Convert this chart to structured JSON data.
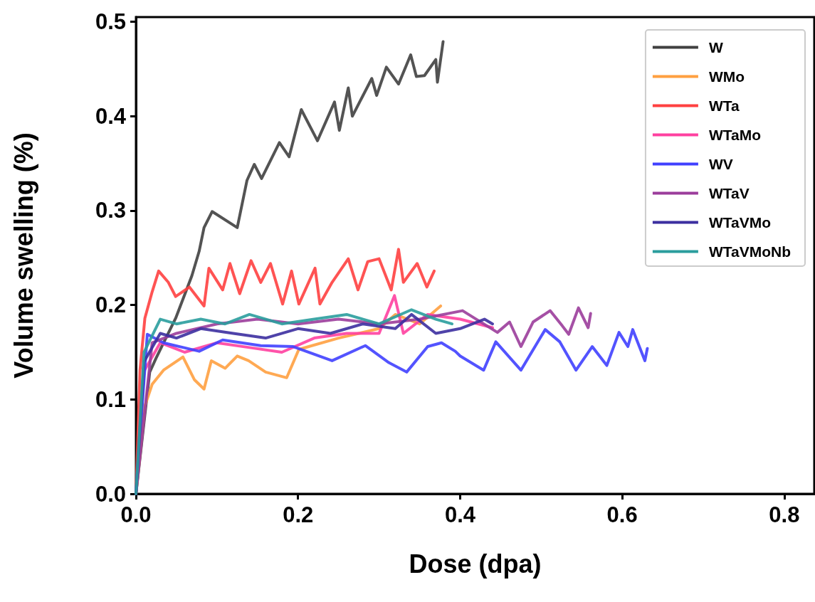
{
  "chart_data": {
    "type": "line",
    "xlabel": "Dose (dpa)",
    "ylabel": "Volume swelling (%)",
    "xlim": [
      0,
      0.837
    ],
    "ylim": [
      0,
      0.505
    ],
    "xticks": [
      {
        "value": 0,
        "label": "0.0"
      },
      {
        "value": 0.2,
        "label": "0.2"
      },
      {
        "value": 0.4,
        "label": "0.4"
      },
      {
        "value": 0.6,
        "label": "0.6"
      },
      {
        "value": 0.8,
        "label": "0.8"
      }
    ],
    "yticks": [
      {
        "value": 0,
        "label": "0.0"
      },
      {
        "value": 0.1,
        "label": "0.1"
      },
      {
        "value": 0.2,
        "label": "0.2"
      },
      {
        "value": 0.3,
        "label": "0.3"
      },
      {
        "value": 0.4,
        "label": "0.4"
      },
      {
        "value": 0.5,
        "label": "0.5"
      }
    ],
    "grid": false,
    "legend": "top right",
    "marker": "none",
    "line_style": "solid",
    "series": [
      {
        "name": "W",
        "color": "#404040",
        "x": [
          0,
          0.017,
          0.025,
          0.049,
          0.069,
          0.078,
          0.084,
          0.094,
          0.125,
          0.137,
          0.146,
          0.155,
          0.177,
          0.189,
          0.204,
          0.224,
          0.245,
          0.251,
          0.262,
          0.267,
          0.291,
          0.297,
          0.309,
          0.324,
          0.339,
          0.346,
          0.356,
          0.37,
          0.372,
          0.379
        ],
        "values": [
          0,
          0.129,
          0.144,
          0.186,
          0.231,
          0.257,
          0.282,
          0.299,
          0.282,
          0.332,
          0.349,
          0.334,
          0.372,
          0.357,
          0.407,
          0.374,
          0.415,
          0.385,
          0.43,
          0.4,
          0.44,
          0.422,
          0.452,
          0.434,
          0.465,
          0.442,
          0.443,
          0.46,
          0.436,
          0.479
        ]
      },
      {
        "name": "WMo",
        "color": "#ffa040",
        "x": [
          0,
          0.011,
          0.02,
          0.034,
          0.058,
          0.072,
          0.084,
          0.093,
          0.11,
          0.125,
          0.139,
          0.16,
          0.186,
          0.201,
          0.25,
          0.3,
          0.32,
          0.35,
          0.376
        ],
        "values": [
          0,
          0.093,
          0.116,
          0.131,
          0.145,
          0.121,
          0.111,
          0.141,
          0.133,
          0.146,
          0.141,
          0.129,
          0.123,
          0.153,
          0.165,
          0.175,
          0.19,
          0.18,
          0.199
        ]
      },
      {
        "name": "WTa",
        "color": "#ff4040",
        "x": [
          0,
          0.005,
          0.011,
          0.02,
          0.028,
          0.04,
          0.049,
          0.066,
          0.084,
          0.09,
          0.107,
          0.116,
          0.128,
          0.142,
          0.154,
          0.166,
          0.181,
          0.192,
          0.201,
          0.221,
          0.227,
          0.242,
          0.262,
          0.274,
          0.286,
          0.3,
          0.315,
          0.324,
          0.33,
          0.347,
          0.359,
          0.368
        ],
        "values": [
          0,
          0.131,
          0.186,
          0.214,
          0.236,
          0.224,
          0.209,
          0.219,
          0.199,
          0.239,
          0.216,
          0.244,
          0.212,
          0.247,
          0.224,
          0.244,
          0.201,
          0.236,
          0.201,
          0.239,
          0.201,
          0.224,
          0.249,
          0.216,
          0.246,
          0.249,
          0.216,
          0.259,
          0.224,
          0.244,
          0.219,
          0.236
        ]
      },
      {
        "name": "WTaMo",
        "color": "#ff40a0",
        "x": [
          0,
          0.01,
          0.03,
          0.06,
          0.1,
          0.14,
          0.18,
          0.22,
          0.26,
          0.3,
          0.319,
          0.33,
          0.36,
          0.4,
          0.44
        ],
        "values": [
          0,
          0.13,
          0.16,
          0.15,
          0.16,
          0.155,
          0.15,
          0.165,
          0.17,
          0.17,
          0.21,
          0.17,
          0.19,
          0.185,
          0.176
        ]
      },
      {
        "name": "WV",
        "color": "#4040ff",
        "x": [
          0,
          0.014,
          0.034,
          0.078,
          0.107,
          0.154,
          0.194,
          0.242,
          0.283,
          0.312,
          0.334,
          0.36,
          0.377,
          0.394,
          0.4,
          0.429,
          0.444,
          0.475,
          0.505,
          0.523,
          0.543,
          0.563,
          0.581,
          0.596,
          0.607,
          0.613,
          0.628,
          0.631
        ],
        "values": [
          0,
          0.169,
          0.16,
          0.151,
          0.163,
          0.157,
          0.156,
          0.141,
          0.157,
          0.139,
          0.129,
          0.156,
          0.16,
          0.151,
          0.146,
          0.131,
          0.161,
          0.131,
          0.174,
          0.161,
          0.131,
          0.156,
          0.136,
          0.171,
          0.156,
          0.174,
          0.141,
          0.154
        ]
      },
      {
        "name": "WTaV",
        "color": "#9b3d9b",
        "x": [
          0,
          0.02,
          0.05,
          0.1,
          0.15,
          0.2,
          0.25,
          0.3,
          0.35,
          0.403,
          0.446,
          0.461,
          0.475,
          0.49,
          0.511,
          0.526,
          0.534,
          0.546,
          0.558,
          0.561
        ],
        "values": [
          0,
          0.16,
          0.17,
          0.18,
          0.185,
          0.18,
          0.185,
          0.18,
          0.185,
          0.194,
          0.171,
          0.182,
          0.156,
          0.182,
          0.194,
          0.178,
          0.169,
          0.197,
          0.176,
          0.191
        ]
      },
      {
        "name": "WTaVMo",
        "color": "#3c2fa0",
        "x": [
          0,
          0.01,
          0.03,
          0.05,
          0.08,
          0.12,
          0.16,
          0.2,
          0.24,
          0.28,
          0.32,
          0.34,
          0.37,
          0.4,
          0.43,
          0.44
        ],
        "values": [
          0,
          0.14,
          0.17,
          0.165,
          0.175,
          0.17,
          0.165,
          0.175,
          0.17,
          0.18,
          0.175,
          0.19,
          0.17,
          0.175,
          0.185,
          0.18
        ]
      },
      {
        "name": "WTaVMoNb",
        "color": "#2a9d9d",
        "x": [
          0,
          0.01,
          0.03,
          0.05,
          0.08,
          0.11,
          0.14,
          0.18,
          0.22,
          0.26,
          0.3,
          0.34,
          0.37,
          0.39
        ],
        "values": [
          0,
          0.15,
          0.185,
          0.18,
          0.185,
          0.18,
          0.19,
          0.18,
          0.185,
          0.19,
          0.18,
          0.195,
          0.185,
          0.18
        ]
      }
    ]
  }
}
